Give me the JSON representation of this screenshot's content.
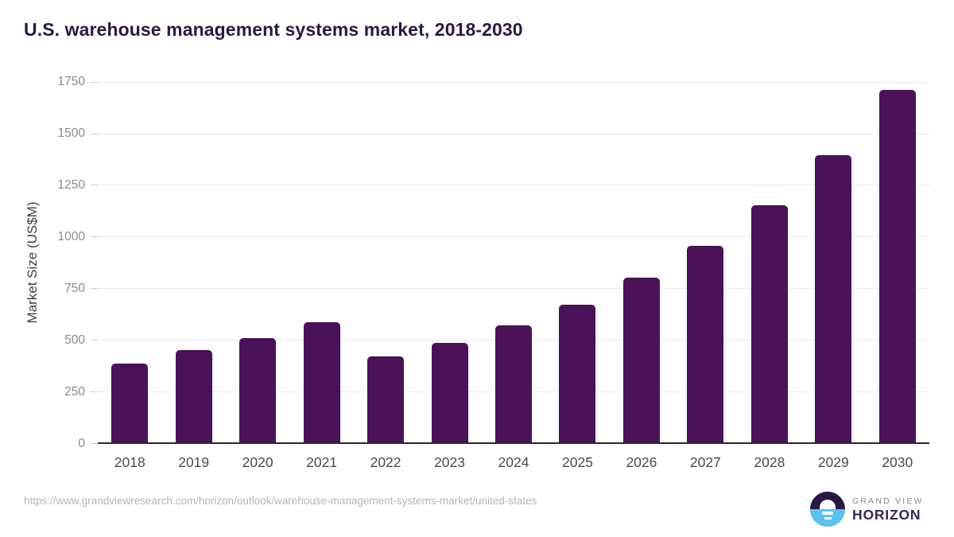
{
  "title": "U.S. warehouse management systems market, 2018-2030",
  "chart_data": {
    "type": "bar",
    "title": "U.S. warehouse management systems market, 2018-2030",
    "categories": [
      "2018",
      "2019",
      "2020",
      "2021",
      "2022",
      "2023",
      "2024",
      "2025",
      "2026",
      "2027",
      "2028",
      "2029",
      "2030"
    ],
    "values": [
      385,
      450,
      510,
      585,
      420,
      485,
      570,
      670,
      800,
      955,
      1150,
      1395,
      1710
    ],
    "xlabel": "",
    "ylabel": "Market Size (US$M)",
    "ylim": [
      0,
      1750
    ],
    "yticks": [
      0,
      250,
      500,
      750,
      1000,
      1250,
      1500,
      1750
    ],
    "grid": "horizontal",
    "legend_position": "none",
    "bar_color": "#4a1158"
  },
  "footer": {
    "source_url": "https://www.grandviewresearch.com/horizon/outlook/warehouse-management-systems-market/united-states",
    "logo": {
      "line1": "GRAND VIEW",
      "line2": "HORIZON"
    }
  },
  "colors": {
    "bar": "#4a1158",
    "title_text": "#2e1745",
    "axis_line": "#2b2b2b",
    "gridline": "#e9e9e9",
    "y_tick_text": "#8a8a8a",
    "x_tick_text": "#4a4a4a",
    "url_text": "#b5b5b5",
    "logo_blue": "#5bc2ee",
    "logo_purple": "#2b1745"
  }
}
